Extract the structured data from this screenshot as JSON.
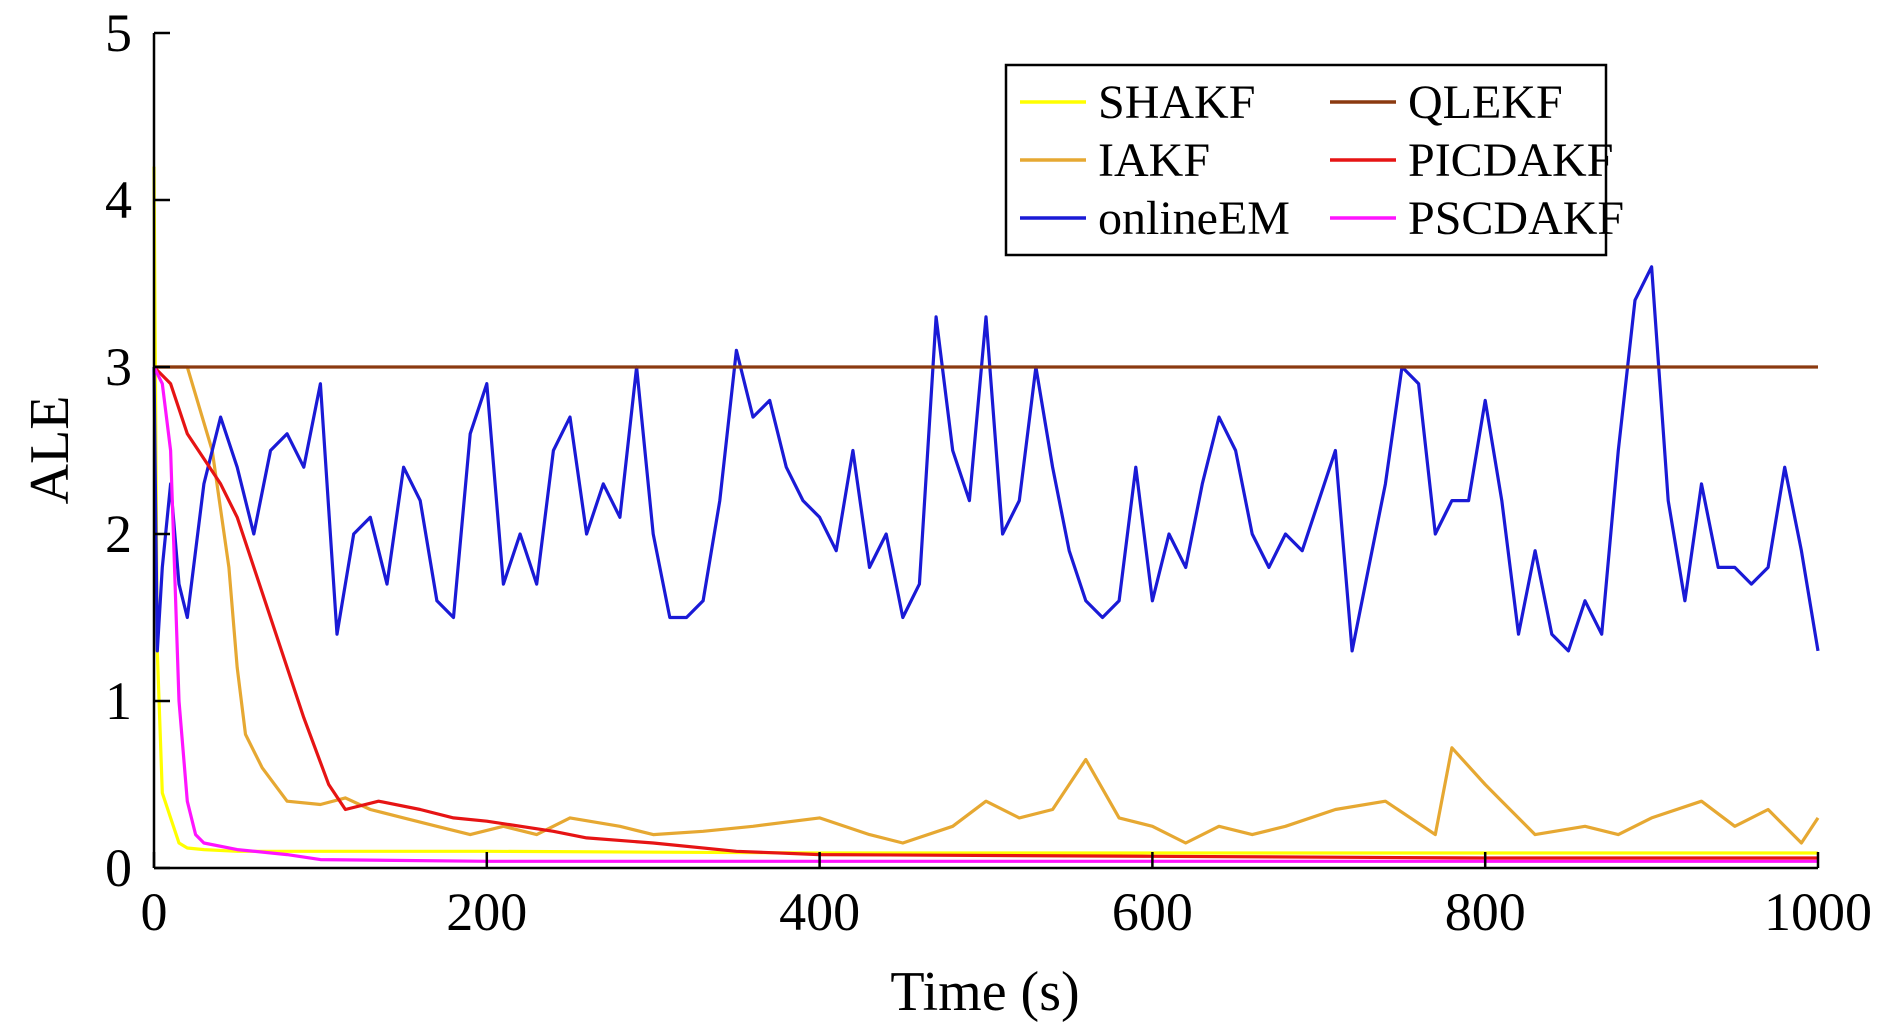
{
  "chart_data": {
    "type": "line",
    "xlabel": "Time (s)",
    "ylabel": "ALE",
    "xlim": [
      0,
      1000
    ],
    "ylim": [
      0,
      5
    ],
    "xticks": [
      0,
      200,
      400,
      600,
      800,
      1000
    ],
    "yticks": [
      0,
      1,
      2,
      3,
      4,
      5
    ],
    "grid": false,
    "legend": "upper right",
    "series": [
      {
        "name": "SHAKF",
        "color": "#ffff00",
        "x": [
          0,
          2,
          5,
          10,
          15,
          20,
          30,
          50,
          100,
          200,
          400,
          600,
          800,
          1000
        ],
        "values": [
          4.2,
          1.3,
          0.45,
          0.3,
          0.15,
          0.12,
          0.11,
          0.1,
          0.1,
          0.1,
          0.09,
          0.09,
          0.09,
          0.09
        ]
      },
      {
        "name": "IAKF",
        "color": "#e6a832",
        "x": [
          0,
          20,
          35,
          45,
          50,
          55,
          65,
          80,
          100,
          115,
          130,
          150,
          170,
          190,
          210,
          230,
          250,
          280,
          300,
          330,
          360,
          400,
          430,
          450,
          480,
          500,
          520,
          540,
          560,
          580,
          600,
          620,
          640,
          660,
          680,
          710,
          740,
          770,
          780,
          800,
          810,
          830,
          860,
          880,
          900,
          930,
          950,
          970,
          990,
          1000
        ],
        "values": [
          3,
          3,
          2.5,
          1.8,
          1.2,
          0.8,
          0.6,
          0.4,
          0.38,
          0.42,
          0.35,
          0.3,
          0.25,
          0.2,
          0.25,
          0.2,
          0.3,
          0.25,
          0.2,
          0.22,
          0.25,
          0.3,
          0.2,
          0.15,
          0.25,
          0.4,
          0.3,
          0.35,
          0.65,
          0.3,
          0.25,
          0.15,
          0.25,
          0.2,
          0.25,
          0.35,
          0.4,
          0.2,
          0.72,
          0.5,
          0.4,
          0.2,
          0.25,
          0.2,
          0.3,
          0.4,
          0.25,
          0.35,
          0.15,
          0.3
        ]
      },
      {
        "name": "onlineEM",
        "color": "#1a1ad6",
        "x": [
          0,
          2,
          5,
          10,
          15,
          20,
          25,
          30,
          40,
          50,
          60,
          70,
          80,
          90,
          100,
          110,
          120,
          130,
          140,
          150,
          160,
          170,
          180,
          190,
          200,
          210,
          220,
          230,
          240,
          250,
          260,
          270,
          280,
          290,
          300,
          310,
          320,
          330,
          340,
          350,
          360,
          370,
          380,
          390,
          400,
          410,
          420,
          430,
          440,
          450,
          460,
          470,
          480,
          490,
          500,
          510,
          520,
          530,
          540,
          550,
          560,
          570,
          580,
          590,
          600,
          610,
          620,
          630,
          640,
          650,
          660,
          670,
          680,
          690,
          700,
          710,
          720,
          730,
          740,
          750,
          760,
          770,
          780,
          790,
          800,
          810,
          820,
          830,
          840,
          850,
          860,
          870,
          880,
          890,
          900,
          910,
          920,
          930,
          940,
          950,
          960,
          970,
          980,
          990,
          1000
        ],
        "values": [
          3,
          1.3,
          1.8,
          2.3,
          1.7,
          1.5,
          1.9,
          2.3,
          2.7,
          2.4,
          2,
          2.5,
          2.6,
          2.4,
          2.9,
          1.4,
          2,
          2.1,
          1.7,
          2.4,
          2.2,
          1.6,
          1.5,
          2.6,
          2.9,
          1.7,
          2,
          1.7,
          2.5,
          2.7,
          2,
          2.3,
          2.1,
          3,
          2,
          1.5,
          1.5,
          1.6,
          2.2,
          3.1,
          2.7,
          2.8,
          2.4,
          2.2,
          2.1,
          1.9,
          2.5,
          1.8,
          2,
          1.5,
          1.7,
          3.3,
          2.5,
          2.2,
          3.3,
          2,
          2.2,
          3,
          2.4,
          1.9,
          1.6,
          1.5,
          1.6,
          2.4,
          1.6,
          2,
          1.8,
          2.3,
          2.7,
          2.5,
          2,
          1.8,
          2,
          1.9,
          2.2,
          2.5,
          1.3,
          1.8,
          2.3,
          3,
          2.9,
          2,
          2.2,
          2.2,
          2.8,
          2.2,
          1.4,
          1.9,
          1.4,
          1.3,
          1.6,
          1.4,
          2.5,
          3.4,
          3.6,
          2.2,
          1.6,
          2.3,
          1.8,
          1.8,
          1.7,
          1.8,
          2.4,
          1.9,
          1.3
        ]
      },
      {
        "name": "QLEKF",
        "color": "#8b3a10",
        "x": [
          0,
          1000
        ],
        "values": [
          3,
          3
        ]
      },
      {
        "name": "PICDAKF",
        "color": "#e61414",
        "x": [
          0,
          10,
          20,
          40,
          50,
          70,
          90,
          105,
          115,
          135,
          160,
          180,
          200,
          240,
          260,
          300,
          350,
          400,
          600,
          800,
          1000
        ],
        "values": [
          3,
          2.9,
          2.6,
          2.3,
          2.1,
          1.5,
          0.9,
          0.5,
          0.35,
          0.4,
          0.35,
          0.3,
          0.28,
          0.22,
          0.18,
          0.15,
          0.1,
          0.08,
          0.07,
          0.06,
          0.06
        ]
      },
      {
        "name": "PSCDAKF",
        "color": "#ff14ff",
        "x": [
          0,
          5,
          10,
          15,
          20,
          25,
          30,
          50,
          80,
          100,
          200,
          1000
        ],
        "values": [
          3,
          2.9,
          2.5,
          1,
          0.4,
          0.2,
          0.15,
          0.11,
          0.08,
          0.05,
          0.04,
          0.04
        ]
      }
    ]
  }
}
